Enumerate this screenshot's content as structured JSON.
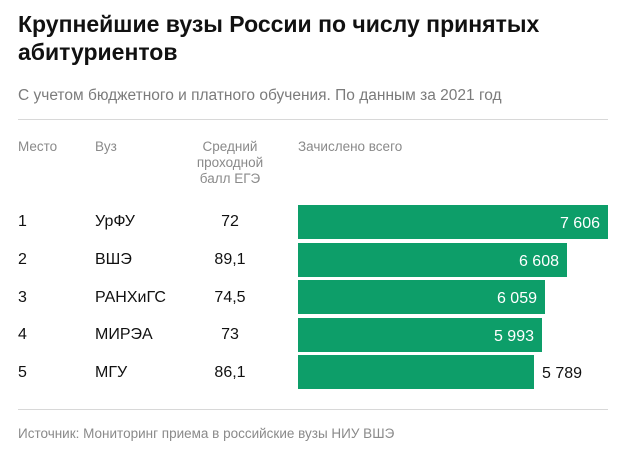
{
  "header": {
    "title": "Крупнейшие вузы России по числу принятых абитуриентов",
    "subtitle": "С учетом бюджетного и платного обучения. По данным за 2021 год"
  },
  "columns": {
    "rank": "Место",
    "university": "Вуз",
    "score_lines": [
      "Средний",
      "проходной",
      "балл ЕГЭ"
    ],
    "enrolled": "Зачислено всего"
  },
  "footer": {
    "source": "Источник: Мониторинг приема в российские вузы НИУ ВШЭ"
  },
  "colors": {
    "bar": "#0d9e69",
    "label_inside": "#ffffff",
    "label_outside": "#111111"
  },
  "chart_data": {
    "type": "bar",
    "orientation": "horizontal",
    "title": "Крупнейшие вузы России по числу принятых абитуриентов",
    "categories": [
      "УрФУ",
      "ВШЭ",
      "РАНХиГС",
      "МИРЭА",
      "МГУ"
    ],
    "ranks": [
      "1",
      "2",
      "3",
      "4",
      "5"
    ],
    "scores": [
      "72",
      "89,1",
      "74,5",
      "73",
      "86,1"
    ],
    "values": [
      7606,
      6608,
      6059,
      5993,
      5789
    ],
    "value_labels": [
      "7 606",
      "6 608",
      "6 059",
      "5 993",
      "5 789"
    ],
    "xlim": [
      0,
      7606
    ],
    "xlabel": "Зачислено всего",
    "ylabel": ""
  }
}
